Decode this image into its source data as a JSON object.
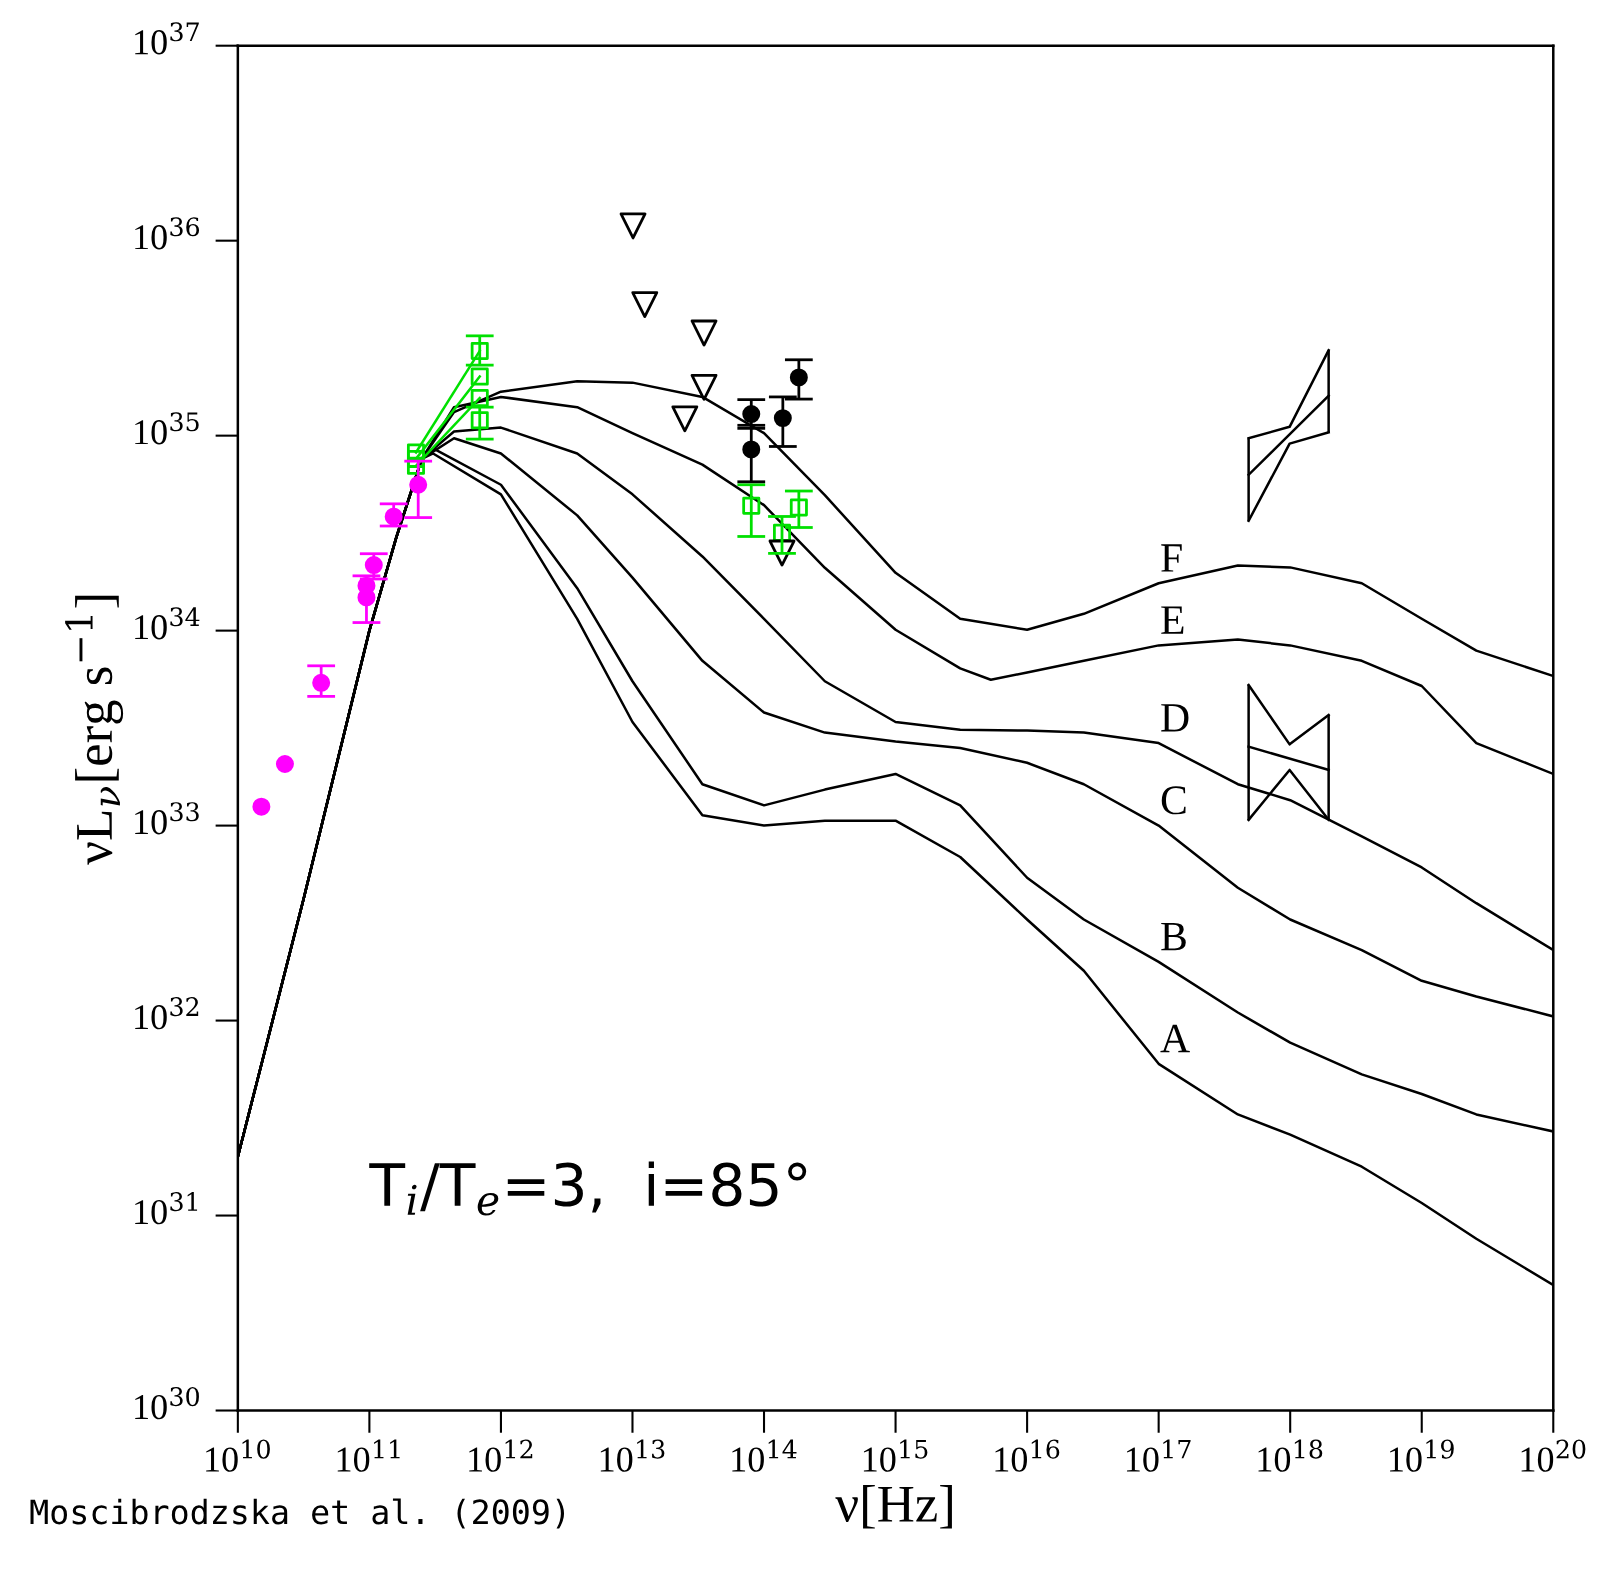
{
  "chart_data": {
    "type": "line",
    "xlabel": "ν[Hz]",
    "ylabel": "νL$_{ν}$[erg s$^{−1}$]",
    "log": "xy",
    "xlim": [
      10000000000.0,
      1e+20
    ],
    "ylim": [
      1e+30,
      1e+37
    ],
    "xticks": [
      {
        "value": 10000000000.0,
        "label": "10$^{10}$"
      },
      {
        "value": 100000000000.0,
        "label": "10$^{11}$"
      },
      {
        "value": 1000000000000.0,
        "label": "10$^{12}$"
      },
      {
        "value": 10000000000000.0,
        "label": "10$^{13}$"
      },
      {
        "value": 100000000000000.0,
        "label": "10$^{14}$"
      },
      {
        "value": 1000000000000000.0,
        "label": "10$^{15}$"
      },
      {
        "value": 1e+16,
        "label": "10$^{16}$"
      },
      {
        "value": 1e+17,
        "label": "10$^{17}$"
      },
      {
        "value": 1e+18,
        "label": "10$^{18}$"
      },
      {
        "value": 1e+19,
        "label": "10$^{19}$"
      },
      {
        "value": 1e+20,
        "label": "10$^{20}$"
      }
    ],
    "yticks": [
      {
        "value": 1e+30,
        "label": "10$^{30}$"
      },
      {
        "value": 1e+31,
        "label": "10$^{31}$"
      },
      {
        "value": 1e+32,
        "label": "10$^{32}$"
      },
      {
        "value": 1e+33,
        "label": "10$^{33}$"
      },
      {
        "value": 1e+34,
        "label": "10$^{34}$"
      },
      {
        "value": 1e+35,
        "label": "10$^{35}$"
      },
      {
        "value": 1e+36,
        "label": "10$^{36}$"
      },
      {
        "value": 1e+37,
        "label": "10$^{37}$"
      }
    ],
    "annotations": [
      "T$_{i}$/T$_{e}$=3,  i=85°",
      "Moscibrodzska et al. (2009)"
    ],
    "series": [
      {
        "name": "F",
        "color": "#000000",
        "x": [
          10000000000.0,
          31600000000.0,
          100000000000.0,
          160000000000.0,
          250000000000.0,
          440000000000.0,
          1000000000000.0,
          3800000000000.0,
          10000000000000.0,
          34000000000000.0,
          100000000000000.0,
          290000000000000.0,
          1000000000000000.0,
          3100000000000000.0,
          1e+16,
          2.7e+16,
          1e+17,
          4e+17,
          1e+18,
          3.5e+18,
          1e+19,
          2.6e+19,
          1e+20
        ],
        "values": [
          2e+31,
          4.2e+32,
          1e+34,
          3e+34,
          7.6e+34,
          1.32e+35,
          1.68e+35,
          1.9e+35,
          1.87e+35,
          1.58e+35,
          1.03e+35,
          4.95e+34,
          1.98e+34,
          1.15e+34,
          1.01e+34,
          1.22e+34,
          1.75e+34,
          2.16e+34,
          2.11e+34,
          1.75e+34,
          1.15e+34,
          7.9e+33,
          5.85e+33
        ]
      },
      {
        "name": "E",
        "color": "#000000",
        "x": [
          10000000000.0,
          31600000000.0,
          100000000000.0,
          160000000000.0,
          250000000000.0,
          440000000000.0,
          1000000000000.0,
          3800000000000.0,
          10000000000000.0,
          34000000000000.0,
          100000000000000.0,
          290000000000000.0,
          1000000000000000.0,
          3100000000000000.0,
          5300000000000000.0,
          1e+16,
          2.7e+16,
          1e+17,
          4e+17,
          1e+18,
          3.5e+18,
          1e+19,
          2.6e+19,
          1e+20
        ],
        "values": [
          2e+31,
          4.2e+32,
          1e+34,
          3e+34,
          7.6e+34,
          1.4e+35,
          1.58e+35,
          1.4e+35,
          1.03e+35,
          7.1e+34,
          4.4e+34,
          2.1e+34,
          1.01e+34,
          6.4e+33,
          5.6e+33,
          6.1e+33,
          7e+33,
          8.4e+33,
          9e+33,
          8.4e+33,
          7e+33,
          5.2e+33,
          2.65e+33,
          1.84e+33
        ]
      },
      {
        "name": "D",
        "color": "#000000",
        "x": [
          10000000000.0,
          31600000000.0,
          100000000000.0,
          160000000000.0,
          250000000000.0,
          440000000000.0,
          1000000000000.0,
          3800000000000.0,
          10000000000000.0,
          34000000000000.0,
          100000000000000.0,
          290000000000000.0,
          1000000000000000.0,
          3100000000000000.0,
          1e+16,
          2.7e+16,
          1e+17,
          4e+17,
          1e+18,
          3.5e+18,
          1e+19,
          2.6e+19,
          1e+20
        ],
        "values": [
          2e+31,
          4.2e+32,
          1e+34,
          3e+34,
          7.6e+34,
          1.05e+35,
          1.1e+35,
          8.1e+34,
          5e+34,
          2.4e+34,
          1.15e+34,
          5.5e+33,
          3.4e+33,
          3.1e+33,
          3.07e+33,
          3e+33,
          2.65e+33,
          1.63e+33,
          1.35e+33,
          8.8e+32,
          6.1e+32,
          4e+32,
          2.3e+32
        ]
      },
      {
        "name": "C",
        "color": "#000000",
        "x": [
          10000000000.0,
          31600000000.0,
          100000000000.0,
          160000000000.0,
          250000000000.0,
          440000000000.0,
          1000000000000.0,
          3800000000000.0,
          10000000000000.0,
          34000000000000.0,
          100000000000000.0,
          290000000000000.0,
          1000000000000000.0,
          3100000000000000.0,
          1e+16,
          2.7e+16,
          1e+17,
          4e+17,
          1e+18,
          3.5e+18,
          1e+19,
          2.6e+19,
          1e+20
        ],
        "values": [
          2e+31,
          4.2e+32,
          1e+34,
          3e+34,
          7.6e+34,
          9.7e+34,
          8.1e+34,
          3.9e+34,
          1.87e+34,
          7e+33,
          3.8e+33,
          3e+33,
          2.7e+33,
          2.5e+33,
          2.1e+33,
          1.63e+33,
          1e+33,
          4.8e+32,
          3.3e+32,
          2.3e+32,
          1.6e+32,
          1.33e+32,
          1.05e+32
        ]
      },
      {
        "name": "B",
        "color": "#000000",
        "x": [
          10000000000.0,
          31600000000.0,
          100000000000.0,
          160000000000.0,
          250000000000.0,
          305000000000.0,
          1000000000000.0,
          3800000000000.0,
          10000000000000.0,
          34000000000000.0,
          100000000000000.0,
          290000000000000.0,
          1000000000000000.0,
          3100000000000000.0,
          1e+16,
          2.7e+16,
          1e+17,
          4e+17,
          1e+18,
          3.5e+18,
          1e+19,
          2.6e+19,
          1e+20
        ],
        "values": [
          2e+31,
          4.2e+32,
          1e+34,
          3e+34,
          7.6e+34,
          8.6e+34,
          5.6e+34,
          1.65e+34,
          5.5e+33,
          1.63e+33,
          1.27e+33,
          1.53e+33,
          1.84e+33,
          1.27e+33,
          5.4e+32,
          3.3e+32,
          2e+32,
          1.1e+32,
          7.7e+31,
          5.3e+31,
          4.2e+31,
          3.3e+31,
          2.7e+31
        ]
      },
      {
        "name": "A",
        "color": "#000000",
        "x": [
          10000000000.0,
          31600000000.0,
          100000000000.0,
          160000000000.0,
          250000000000.0,
          305000000000.0,
          1000000000000.0,
          3800000000000.0,
          10000000000000.0,
          34000000000000.0,
          100000000000000.0,
          290000000000000.0,
          1000000000000000.0,
          3100000000000000.0,
          1e+16,
          2.7e+16,
          1e+17,
          4e+17,
          1e+18,
          3.5e+18,
          1e+19,
          2.6e+19,
          1e+20
        ],
        "values": [
          2e+31,
          4.2e+32,
          1e+34,
          3e+34,
          7.6e+34,
          8.1e+34,
          5e+34,
          1.15e+34,
          3.4e+33,
          1.13e+33,
          1e+33,
          1.06e+33,
          1.06e+33,
          6.9e+32,
          3.3e+32,
          1.8e+32,
          6e+31,
          3.3e+31,
          2.6e+31,
          1.78e+31,
          1.16e+31,
          7.6e+30,
          4.4e+30
        ]
      },
      {
        "type": "line",
        "color": "#000000",
        "x": [
          4.83e+17,
          9.9e+17,
          1.96e+18
        ],
        "values": [
          9.7e+34,
          1.11e+35,
          2.74e+35
        ]
      },
      {
        "type": "line",
        "color": "#000000",
        "x": [
          4.83e+17,
          9.9e+17,
          1.96e+18
        ],
        "values": [
          3.66e+34,
          9.1e+34,
          1.04e+35
        ]
      },
      {
        "type": "line",
        "color": "#000000",
        "x": [
          4.83e+17,
          1.96e+18
        ],
        "values": [
          6.3e+34,
          1.6e+35
        ],
        "errors": [
          [
            3.66e+34,
            9.7e+34
          ],
          [
            1.04e+35,
            2.74e+35
          ]
        ]
      },
      {
        "type": "line",
        "color": "#000000",
        "x": [
          4.83e+17,
          9.9e+17,
          1.96e+18
        ],
        "values": [
          5.26e+33,
          2.61e+33,
          3.69e+33
        ]
      },
      {
        "type": "line",
        "color": "#000000",
        "x": [
          4.83e+17,
          9.9e+17,
          1.96e+18
        ],
        "values": [
          1.07e+33,
          1.93e+33,
          1.07e+33
        ]
      },
      {
        "type": "line",
        "color": "#000000",
        "x": [
          4.83e+17,
          1.96e+18
        ],
        "values": [
          2.54e+33,
          1.93e+33
        ],
        "errors": [
          [
            1.07e+33,
            5.26e+33
          ],
          [
            1.07e+33,
            3.69e+33
          ]
        ]
      },
      {
        "type": "scatter",
        "marker": "circle",
        "color": "#ff00ff",
        "x": [
          15100000000.0,
          22800000000.0,
          43000000000.0,
          95000000000.0,
          95000000000.0,
          108000000000.0,
          153000000000.0,
          235000000000.0
        ],
        "values": [
          1.25e+33,
          2.07e+33,
          5.4e+33,
          1.7e+34,
          1.48e+34,
          2.17e+34,
          3.84e+34,
          5.6e+34
        ],
        "errors": [
          null,
          null,
          [
            4.6e+33,
            6.6e+33
          ],
          null,
          [
            1.1e+34,
            1.91e+34
          ],
          [
            1.84e+34,
            2.48e+34
          ],
          [
            3.44e+34,
            4.47e+34
          ],
          [
            3.8e+34,
            7.4e+34
          ]
        ]
      },
      {
        "type": "line",
        "marker": "square",
        "color": "#00e000",
        "x": [
          226000000000.0,
          690000000000.0
        ],
        "values": [
          8.2e+34,
          2.72e+35
        ],
        "errors": [
          null,
          [
            2.3e+35,
            3.25e+35
          ]
        ]
      },
      {
        "type": "line",
        "marker": "square",
        "color": "#00e000",
        "x": [
          226000000000.0,
          690000000000.0
        ],
        "values": [
          7.6e+34,
          2.01e+35
        ]
      },
      {
        "type": "line",
        "marker": "square",
        "color": "#00e000",
        "x": [
          226000000000.0,
          690000000000.0
        ],
        "values": [
          7e+34,
          1.56e+35
        ]
      },
      {
        "type": "scatter",
        "marker": "square",
        "color": "#00e000",
        "x": [
          690000000000.0,
          80000000000000.0,
          137000000000000.0,
          184000000000000.0
        ],
        "values": [
          1.2e+35,
          4.37e+34,
          3.18e+34,
          4.28e+34
        ],
        "errors": [
          [
            9.6e+34,
            1.4e+35
          ],
          [
            3.04e+34,
            5.6e+34
          ],
          [
            2.49e+34,
            3.85e+34
          ],
          [
            3.38e+34,
            5.2e+34
          ]
        ]
      },
      {
        "type": "scatter",
        "marker": "circle",
        "color": "#000000",
        "x": [
          80000000000000.0,
          80000000000000.0,
          139000000000000.0,
          184000000000000.0
        ],
        "values": [
          1.29e+35,
          8.5e+34,
          1.23e+35,
          1.99e+35
        ],
        "errors": [
          [
            1.09e+35,
            1.53e+35
          ],
          [
            5.8e+34,
            1.13e+35
          ],
          [
            8.8e+34,
            1.58e+35
          ],
          [
            1.54e+35,
            2.45e+35
          ]
        ]
      },
      {
        "type": "scatter",
        "marker": "triangle",
        "color": "#000000",
        "x": [
          10100000000000.0,
          12400000000000.0,
          35000000000000.0,
          35000000000000.0,
          25000000000000.0,
          137000000000000.0
        ],
        "values": [
          1.19e+36,
          4.7e+35,
          3.36e+35,
          1.77e+35,
          1.22e+35,
          2.5e+34
        ]
      }
    ]
  }
}
